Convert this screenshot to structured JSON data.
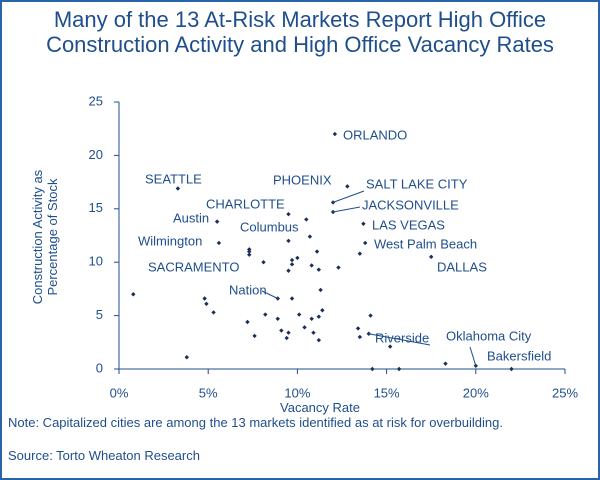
{
  "chart_data": {
    "type": "scatter",
    "title": "Many of the 13 At-Risk Markets Report High Office Construction Activity and High Office Vacancy Rates",
    "xlabel": "Vacancy Rate",
    "ylabel": "Construction Activity as Percentage of Stock",
    "note": "Note: Capitalized cities are among the 13 markets identified as at risk for overbuilding.",
    "source": "Source: Torto Wheaton Research",
    "xlim": [
      0,
      25
    ],
    "ylim": [
      0,
      25
    ],
    "xticks": [
      {
        "value": 0,
        "label": "0%"
      },
      {
        "value": 5,
        "label": "5%"
      },
      {
        "value": 10,
        "label": "10%"
      },
      {
        "value": 15,
        "label": "15%"
      },
      {
        "value": 20,
        "label": "20%"
      },
      {
        "value": 25,
        "label": "25%"
      }
    ],
    "yticks": [
      0,
      5,
      10,
      15,
      20,
      25
    ],
    "color": "#1a2f5a",
    "x": [
      3.3,
      5.5,
      5.6,
      7.3,
      7.3,
      7.3,
      8.1,
      4.8,
      4.9,
      5.3,
      0.8,
      3.8,
      7.2,
      7.6,
      8.2,
      8.9,
      9.1,
      9.4,
      9.5,
      8.9,
      9.7,
      10.1,
      10.4,
      10.8,
      11.2,
      10.9,
      11.2,
      11.4,
      11.3,
      9.7,
      9.7,
      10.0,
      9.5,
      9.5,
      9.5,
      10.5,
      10.7,
      11.1,
      10.8,
      11.2,
      12.3,
      12.0,
      12.0,
      13.5,
      13.7,
      13.8,
      12.8,
      12.1,
      13.4,
      13.5,
      14.0,
      14.1,
      15.2,
      17.5,
      18.3,
      20.0,
      22.0,
      15.7,
      14.2
    ],
    "values": [
      16.9,
      13.8,
      11.8,
      11.2,
      11.0,
      10.7,
      10.0,
      6.6,
      6.1,
      5.3,
      7.0,
      1.1,
      4.4,
      3.1,
      5.1,
      4.7,
      3.6,
      2.9,
      3.4,
      6.6,
      6.6,
      5.1,
      3.9,
      4.7,
      2.7,
      3.4,
      4.9,
      5.5,
      7.4,
      9.8,
      10.2,
      10.4,
      9.2,
      12.0,
      14.5,
      14.0,
      12.4,
      11.0,
      9.7,
      9.3,
      9.5,
      14.7,
      15.6,
      10.8,
      13.6,
      11.8,
      17.1,
      22.0,
      3.8,
      3.0,
      3.3,
      5.0,
      2.1,
      10.5,
      0.5,
      0.3,
      0.0,
      0.0,
      0.0
    ],
    "labels": [
      "SEATTLE",
      "Austin",
      "Wilmington",
      null,
      null,
      null,
      "SACRAMENTO",
      null,
      null,
      null,
      null,
      null,
      null,
      null,
      null,
      null,
      null,
      null,
      null,
      "Nation",
      null,
      null,
      null,
      null,
      null,
      null,
      null,
      null,
      null,
      null,
      null,
      null,
      null,
      null,
      "CHARLOTTE",
      "Columbus",
      null,
      null,
      null,
      null,
      null,
      "JACKSONVILLE",
      "SALT LAKE CITY",
      null,
      "LAS VEGAS",
      "West Palm Beach",
      "PHOENIX",
      "ORLANDO",
      null,
      null,
      "Riverside",
      null,
      null,
      "DALLAS",
      null,
      "Oklahoma City",
      "Bakersfield",
      null,
      null
    ]
  }
}
